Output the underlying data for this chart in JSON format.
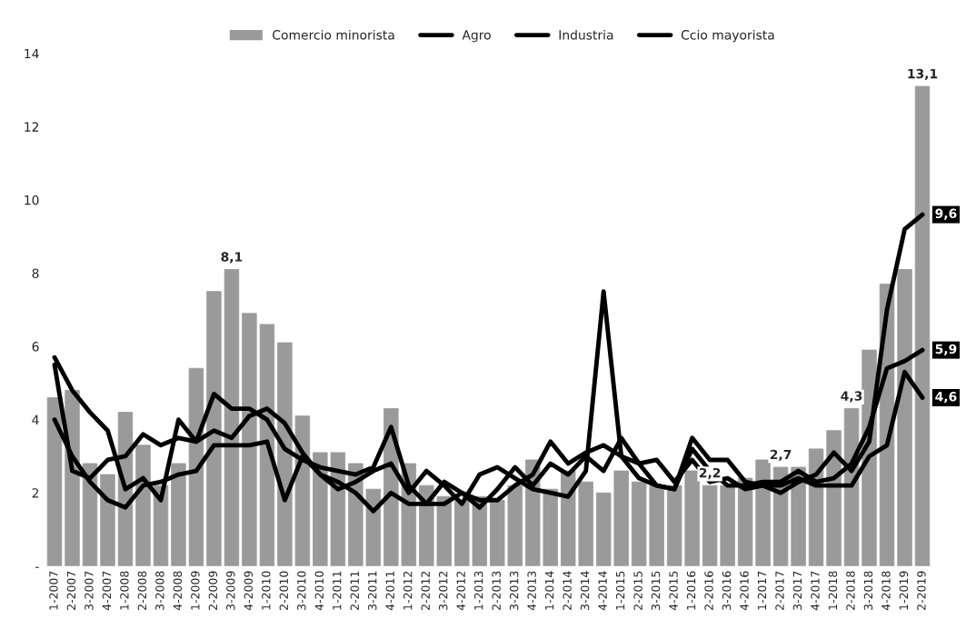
{
  "chart_data": {
    "type": "bar",
    "categories": [
      "1-2007",
      "2-2007",
      "3-2007",
      "4-2007",
      "1-2008",
      "2-2008",
      "3-2008",
      "4-2008",
      "1-2009",
      "2-2009",
      "3-2009",
      "4-2009",
      "1-2010",
      "2-2010",
      "3-2010",
      "4-2010",
      "1-2011",
      "2-2011",
      "3-2011",
      "4-2011",
      "1-2012",
      "2-2012",
      "3-2012",
      "4-2012",
      "1-2013",
      "2-2013",
      "3-2013",
      "4-2013",
      "1-2014",
      "2-2014",
      "3-2014",
      "4-2014",
      "1-2015",
      "2-2015",
      "3-2015",
      "4-2015",
      "1-2016",
      "2-2016",
      "3-2016",
      "4-2016",
      "1-2017",
      "2-2017",
      "3-2017",
      "4-2017",
      "1-2018",
      "2-2018",
      "3-2018",
      "4-2018",
      "1-2019",
      "2-2019"
    ],
    "series": [
      {
        "name": "Comercio minorista",
        "color": "#9a9a9a",
        "values": [
          4.6,
          4.8,
          2.8,
          2.5,
          4.2,
          3.3,
          2.2,
          2.8,
          5.4,
          7.5,
          8.1,
          6.9,
          6.6,
          6.1,
          4.1,
          3.1,
          3.1,
          2.8,
          2.1,
          4.3,
          2.8,
          2.2,
          1.9,
          1.8,
          1.9,
          1.8,
          2.2,
          2.9,
          2.1,
          2.6,
          2.3,
          2.0,
          2.6,
          2.3,
          2.2,
          2.2,
          2.6,
          2.2,
          2.2,
          2.4,
          2.9,
          2.7,
          2.7,
          3.2,
          3.7,
          4.3,
          5.9,
          7.7,
          8.1,
          13.1
        ],
        "value_labels": [
          null,
          null,
          null,
          null,
          null,
          null,
          null,
          null,
          null,
          null,
          "8,1",
          null,
          null,
          null,
          null,
          null,
          null,
          null,
          null,
          null,
          null,
          null,
          null,
          null,
          null,
          null,
          null,
          null,
          null,
          null,
          null,
          null,
          null,
          null,
          null,
          null,
          null,
          "2,2",
          null,
          null,
          null,
          "2,7",
          null,
          null,
          null,
          "4,3",
          null,
          null,
          null,
          "13,1"
        ]
      },
      {
        "name": "Agro",
        "type": "line",
        "color": "#000000",
        "values": [
          4.0,
          3.0,
          2.3,
          1.8,
          1.6,
          2.2,
          2.3,
          2.5,
          2.6,
          3.3,
          3.3,
          3.3,
          3.4,
          1.8,
          3.0,
          2.5,
          2.1,
          2.3,
          2.6,
          2.8,
          2.0,
          2.6,
          2.2,
          1.7,
          2.5,
          2.7,
          2.4,
          2.1,
          2.0,
          1.9,
          2.6,
          7.5,
          3.0,
          2.4,
          2.2,
          2.1,
          3.5,
          2.9,
          2.9,
          2.3,
          2.2,
          2.2,
          2.4,
          2.2,
          2.2,
          2.2,
          3.0,
          3.3,
          5.3,
          4.6
        ],
        "value_labels": [
          null,
          null,
          null,
          null,
          null,
          null,
          null,
          null,
          null,
          null,
          null,
          null,
          null,
          null,
          null,
          null,
          null,
          null,
          null,
          null,
          null,
          null,
          null,
          null,
          null,
          null,
          null,
          null,
          null,
          null,
          null,
          null,
          null,
          null,
          null,
          null,
          null,
          null,
          null,
          null,
          null,
          null,
          null,
          null,
          null,
          null,
          null,
          null,
          null,
          "4,6"
        ]
      },
      {
        "name": "Industria",
        "type": "line",
        "color": "#000000",
        "values": [
          5.7,
          4.8,
          4.2,
          3.7,
          2.1,
          2.4,
          1.8,
          4.0,
          3.4,
          4.7,
          4.3,
          4.3,
          4.0,
          3.2,
          2.9,
          2.7,
          2.6,
          2.5,
          2.7,
          3.8,
          2.2,
          1.7,
          1.7,
          2.0,
          1.8,
          1.8,
          2.2,
          2.5,
          3.4,
          2.8,
          3.1,
          3.3,
          3.0,
          2.8,
          2.2,
          2.1,
          3.2,
          2.6,
          2.2,
          2.2,
          2.3,
          2.3,
          2.6,
          2.3,
          2.4,
          2.8,
          3.8,
          5.4,
          5.6,
          5.9
        ],
        "value_labels": [
          null,
          null,
          null,
          null,
          null,
          null,
          null,
          null,
          null,
          null,
          null,
          null,
          null,
          null,
          null,
          null,
          null,
          null,
          null,
          null,
          null,
          null,
          null,
          null,
          null,
          null,
          null,
          null,
          null,
          null,
          null,
          null,
          null,
          null,
          null,
          null,
          null,
          null,
          null,
          null,
          null,
          null,
          null,
          null,
          null,
          null,
          null,
          null,
          null,
          "5,9"
        ]
      },
      {
        "name": "Ccio mayorista",
        "type": "line",
        "color": "#000000",
        "values": [
          5.5,
          2.6,
          2.4,
          2.9,
          3.0,
          3.6,
          3.3,
          3.5,
          3.4,
          3.7,
          3.5,
          4.1,
          4.3,
          3.9,
          3.1,
          2.5,
          2.3,
          2.0,
          1.5,
          2.0,
          1.7,
          1.7,
          2.3,
          2.0,
          1.6,
          2.1,
          2.7,
          2.2,
          2.8,
          2.5,
          3.0,
          2.6,
          3.5,
          2.8,
          2.9,
          2.3,
          2.9,
          2.3,
          2.4,
          2.1,
          2.2,
          2.0,
          2.3,
          2.5,
          3.1,
          2.6,
          3.4,
          7.0,
          9.2,
          9.6
        ],
        "value_labels": [
          null,
          null,
          null,
          null,
          null,
          null,
          null,
          null,
          null,
          null,
          null,
          null,
          null,
          null,
          null,
          null,
          null,
          null,
          null,
          null,
          null,
          null,
          null,
          null,
          null,
          null,
          null,
          null,
          null,
          null,
          null,
          null,
          null,
          null,
          null,
          null,
          null,
          null,
          null,
          null,
          null,
          null,
          null,
          null,
          null,
          null,
          null,
          null,
          null,
          "9,6"
        ]
      }
    ],
    "ylim": [
      0,
      14
    ],
    "yticks": [
      {
        "value": 0,
        "label": "-"
      },
      2,
      4,
      6,
      8,
      10,
      12,
      14
    ],
    "grid": false,
    "legend": "top"
  }
}
